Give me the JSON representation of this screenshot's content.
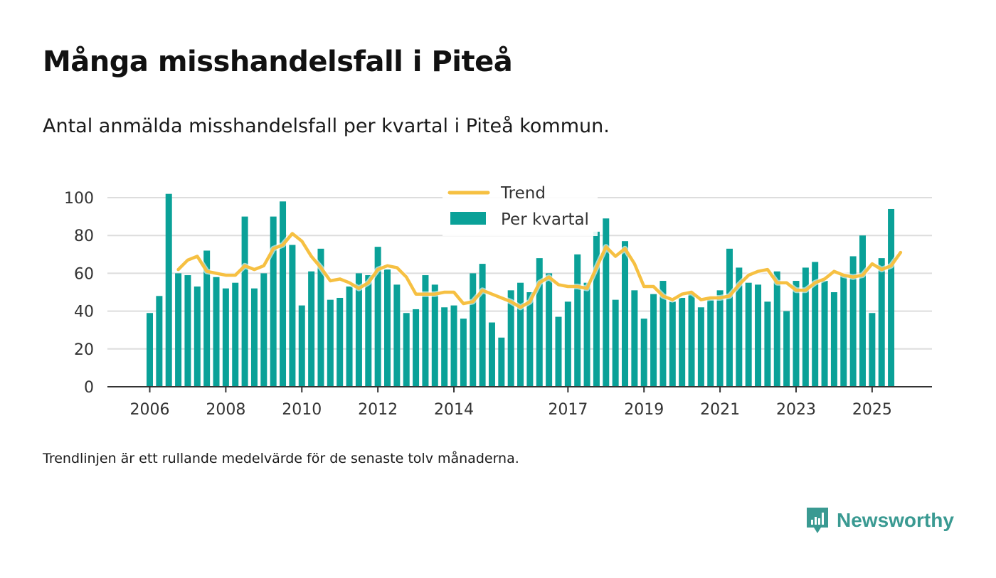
{
  "title": "Många misshandelsfall i Piteå",
  "subtitle": "Antal anmälda misshandelsfall per kvartal i Piteå kommun.",
  "note": "Trendlinjen är ett rullande medelvärde för de senaste tolv månaderna.",
  "brand": {
    "name": "Newsworthy",
    "icon": "newsworthy-logo-icon",
    "color": "#3a9a92"
  },
  "chart_data": {
    "type": "bar",
    "title": "Många misshandelsfall i Piteå",
    "xlabel": "",
    "ylabel": "",
    "ylim": [
      0,
      100
    ],
    "yticks": [
      "0",
      "20",
      "40",
      "60",
      "80",
      "100"
    ],
    "ytick_values": [
      0,
      20,
      40,
      60,
      80,
      100
    ],
    "xticks": [
      {
        "label": "2006",
        "index": 0
      },
      {
        "label": "2008",
        "index": 8
      },
      {
        "label": "2010",
        "index": 16
      },
      {
        "label": "2012",
        "index": 24
      },
      {
        "label": "2014",
        "index": 32
      },
      {
        "label": "2017",
        "index": 44
      },
      {
        "label": "2019",
        "index": 52
      },
      {
        "label": "2021",
        "index": 60
      },
      {
        "label": "2023",
        "index": 68
      },
      {
        "label": "2025",
        "index": 76
      }
    ],
    "grid": true,
    "legend": {
      "placement": "top-center",
      "entries": [
        "Trend",
        "Per kvartal"
      ]
    },
    "series": [
      {
        "name": "Per kvartal",
        "type": "bar",
        "color": "#0aa198",
        "values": [
          39,
          48,
          102,
          60,
          59,
          53,
          72,
          58,
          52,
          55,
          90,
          52,
          60,
          90,
          98,
          75,
          43,
          61,
          73,
          46,
          47,
          53,
          60,
          59,
          74,
          62,
          54,
          39,
          41,
          59,
          54,
          42,
          43,
          36,
          60,
          65,
          34,
          26,
          51,
          55,
          50,
          68,
          60,
          37,
          45,
          70,
          55,
          82,
          89,
          46,
          77,
          51,
          36,
          49,
          56,
          45,
          47,
          49,
          42,
          46,
          51,
          73,
          63,
          55,
          54,
          45,
          61,
          40,
          56,
          63,
          66,
          56,
          50,
          59,
          69,
          80,
          39,
          68,
          94
        ]
      },
      {
        "name": "Trend",
        "type": "line",
        "color": "#f6c042",
        "start_index": 3,
        "values": [
          62,
          67,
          69,
          61,
          60,
          59,
          59,
          64,
          62,
          64,
          73,
          75,
          81,
          77,
          69,
          63,
          56,
          57,
          55,
          52,
          55,
          62,
          64,
          63,
          58,
          49,
          49,
          49,
          50,
          50,
          44,
          45,
          51,
          49,
          47,
          45,
          42,
          45,
          55,
          58,
          54,
          53,
          53,
          52,
          63,
          74,
          69,
          73,
          65,
          53,
          53,
          48,
          46,
          49,
          50,
          46,
          47,
          47,
          48,
          54,
          59,
          61,
          62,
          55,
          55,
          51,
          51,
          55,
          57,
          61,
          59,
          58,
          59,
          65,
          62,
          64,
          71
        ]
      }
    ]
  }
}
